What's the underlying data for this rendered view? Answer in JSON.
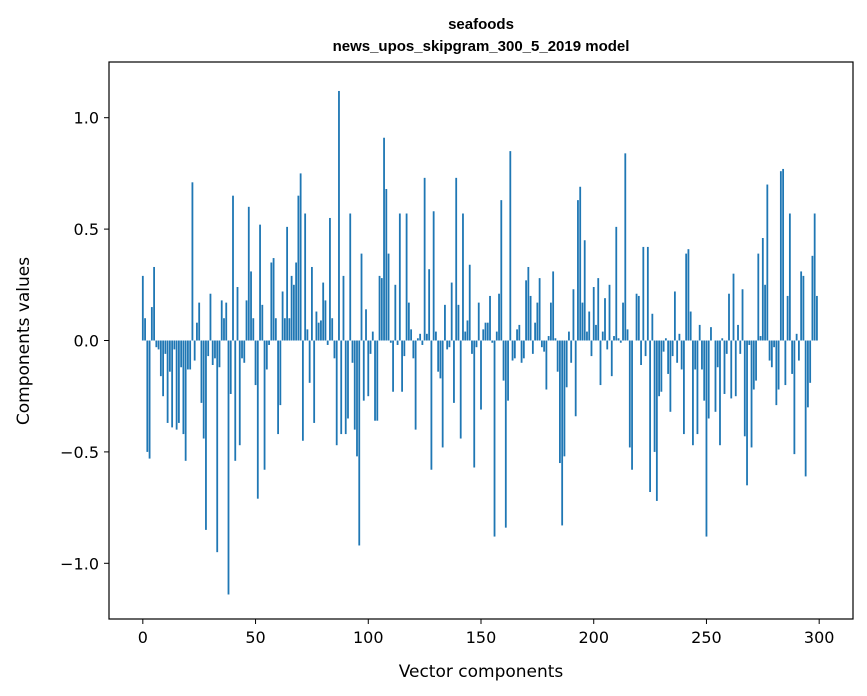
{
  "chart_data": {
    "type": "bar",
    "title": "seafoods",
    "subtitle": "news_upos_skipgram_300_5_2019 model",
    "xlabel": "Vector components",
    "ylabel": "Components values",
    "xlim": [
      -15,
      315
    ],
    "ylim": [
      -1.25,
      1.25
    ],
    "xticks": [
      0,
      50,
      100,
      150,
      200,
      250,
      300
    ],
    "xtick_labels": [
      "0",
      "50",
      "100",
      "150",
      "200",
      "250",
      "300"
    ],
    "yticks": [
      -1.0,
      -0.5,
      0.0,
      0.5,
      1.0
    ],
    "ytick_labels": [
      "−1.0",
      "−0.5",
      "0.0",
      "0.5",
      "1.0"
    ],
    "grid": false,
    "bar_color": "#1f77b4",
    "values": [
      0.29,
      0.1,
      -0.5,
      -0.53,
      0.15,
      0.33,
      -0.03,
      -0.04,
      -0.16,
      -0.25,
      -0.06,
      -0.37,
      -0.14,
      -0.39,
      -0.04,
      -0.4,
      -0.37,
      -0.12,
      -0.42,
      -0.54,
      -0.13,
      -0.13,
      0.71,
      -0.09,
      0.08,
      0.17,
      -0.28,
      -0.44,
      -0.85,
      -0.07,
      0.21,
      -0.11,
      -0.08,
      -0.95,
      -0.12,
      0.18,
      0.1,
      0.17,
      -1.14,
      -0.24,
      0.65,
      -0.54,
      0.24,
      -0.47,
      -0.08,
      -0.1,
      0.18,
      0.6,
      0.31,
      0.1,
      -0.2,
      -0.71,
      0.52,
      0.16,
      -0.58,
      -0.13,
      -0.02,
      0.35,
      0.37,
      0.1,
      -0.42,
      -0.29,
      0.22,
      0.1,
      0.51,
      0.1,
      0.29,
      0.25,
      0.35,
      0.65,
      0.75,
      -0.45,
      0.57,
      0.05,
      -0.19,
      0.33,
      -0.37,
      0.13,
      0.08,
      0.09,
      0.26,
      0.18,
      -0.02,
      0.55,
      0.1,
      -0.08,
      -0.47,
      1.12,
      -0.42,
      0.29,
      -0.42,
      -0.35,
      0.57,
      -0.1,
      -0.4,
      -0.52,
      -0.92,
      0.39,
      -0.27,
      0.14,
      -0.25,
      -0.06,
      0.04,
      -0.36,
      -0.36,
      0.29,
      0.28,
      0.91,
      0.68,
      0.39,
      -0.01,
      -0.23,
      0.25,
      -0.02,
      0.57,
      -0.23,
      -0.07,
      0.57,
      0.17,
      0.05,
      -0.08,
      -0.4,
      0.01,
      0.03,
      -0.02,
      0.73,
      0.03,
      0.32,
      -0.58,
      0.58,
      0.04,
      -0.14,
      -0.17,
      -0.48,
      0.16,
      -0.04,
      -0.03,
      0.26,
      -0.28,
      0.73,
      0.16,
      -0.44,
      0.57,
      0.04,
      0.09,
      0.34,
      -0.06,
      -0.57,
      -0.03,
      0.17,
      -0.31,
      0.05,
      0.08,
      0.08,
      0.2,
      -0.01,
      -0.88,
      0.04,
      0.21,
      0.63,
      -0.18,
      -0.84,
      -0.27,
      0.85,
      -0.09,
      -0.08,
      0.05,
      0.07,
      -0.1,
      -0.08,
      0.27,
      0.33,
      0.2,
      -0.06,
      0.08,
      0.17,
      0.28,
      -0.03,
      -0.05,
      -0.22,
      0.02,
      0.17,
      0.31,
      0.01,
      -0.14,
      -0.55,
      -0.83,
      -0.52,
      -0.21,
      0.04,
      -0.1,
      0.23,
      -0.34,
      0.63,
      0.69,
      0.17,
      0.45,
      0.04,
      0.13,
      -0.07,
      0.24,
      0.07,
      0.28,
      -0.2,
      0.04,
      0.19,
      -0.04,
      0.25,
      -0.16,
      0.02,
      0.51,
      0.01,
      -0.01,
      0.17,
      0.84,
      0.05,
      -0.48,
      -0.58,
      0.0,
      0.21,
      0.2,
      -0.11,
      0.42,
      -0.07,
      0.42,
      -0.68,
      0.12,
      -0.5,
      -0.72,
      -0.25,
      -0.23,
      -0.05,
      0.01,
      -0.15,
      -0.32,
      -0.07,
      0.22,
      -0.1,
      0.03,
      -0.13,
      -0.42,
      0.39,
      0.41,
      0.13,
      -0.47,
      -0.13,
      -0.42,
      0.07,
      -0.13,
      -0.27,
      -0.88,
      -0.35,
      0.06,
      0.0,
      -0.32,
      -0.12,
      -0.47,
      0.01,
      -0.24,
      -0.06,
      0.21,
      -0.26,
      0.3,
      -0.25,
      0.07,
      -0.06,
      0.23,
      -0.43,
      -0.65,
      -0.02,
      -0.48,
      -0.22,
      -0.18,
      0.39,
      0.02,
      0.46,
      0.25,
      0.7,
      -0.09,
      -0.12,
      -0.03,
      -0.29,
      -0.22,
      0.76,
      0.77,
      -0.2,
      0.2,
      0.57,
      -0.15,
      -0.51,
      0.03,
      -0.09,
      0.31,
      0.29,
      -0.61,
      -0.3,
      -0.19,
      0.38,
      0.57,
      0.2
    ]
  }
}
